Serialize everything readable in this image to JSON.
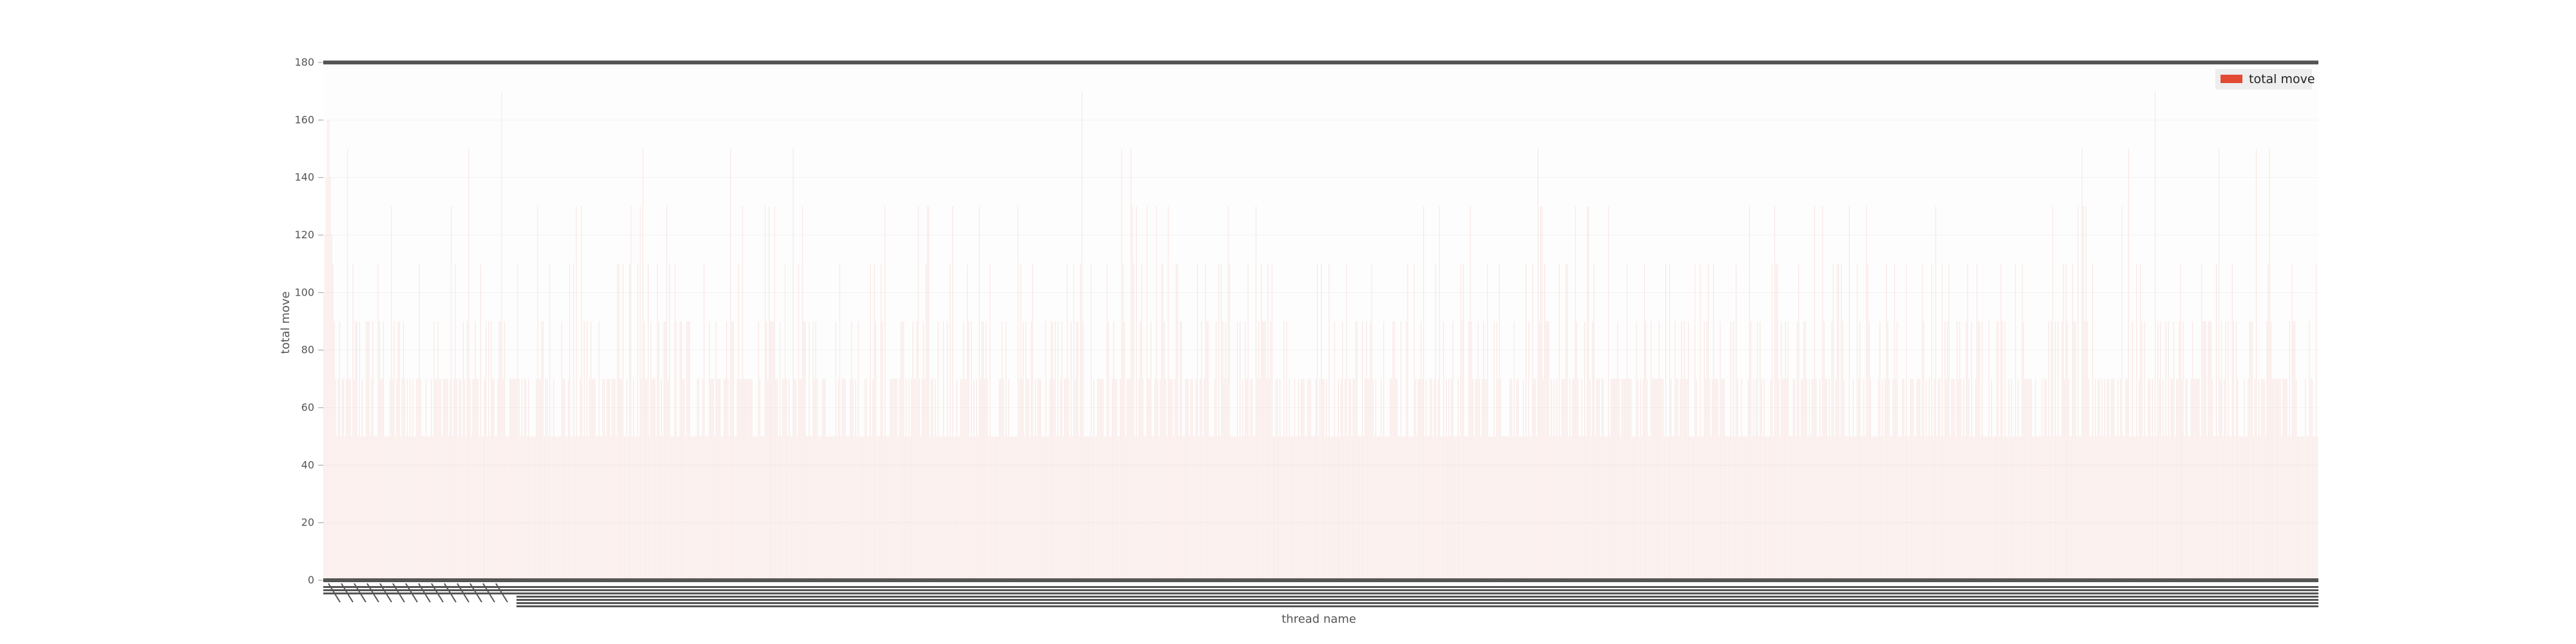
{
  "chart_data": {
    "type": "bar",
    "title": "",
    "xlabel": "thread name",
    "ylabel": "total move",
    "ylim": [
      0,
      180
    ],
    "yticks": [
      0,
      20,
      40,
      60,
      80,
      100,
      120,
      140,
      160,
      180
    ],
    "bar_count": 1500,
    "legend": {
      "position": "top-right",
      "entries": [
        {
          "label": "total move",
          "color": "#e24a33"
        }
      ]
    },
    "grid": true,
    "background_color": "#fdfdfd",
    "bar_color": "#e24a33",
    "value_levels": [
      50,
      70,
      90,
      110,
      130,
      150,
      170
    ],
    "notes": "x tick labels are thousands of overlapping thread names and are illegible",
    "series": [
      {
        "name": "total move",
        "sample_values_start": [
          100,
          120,
          140,
          160,
          160,
          140,
          120,
          110,
          90,
          70,
          50,
          70,
          90,
          50,
          70
        ]
      }
    ]
  }
}
